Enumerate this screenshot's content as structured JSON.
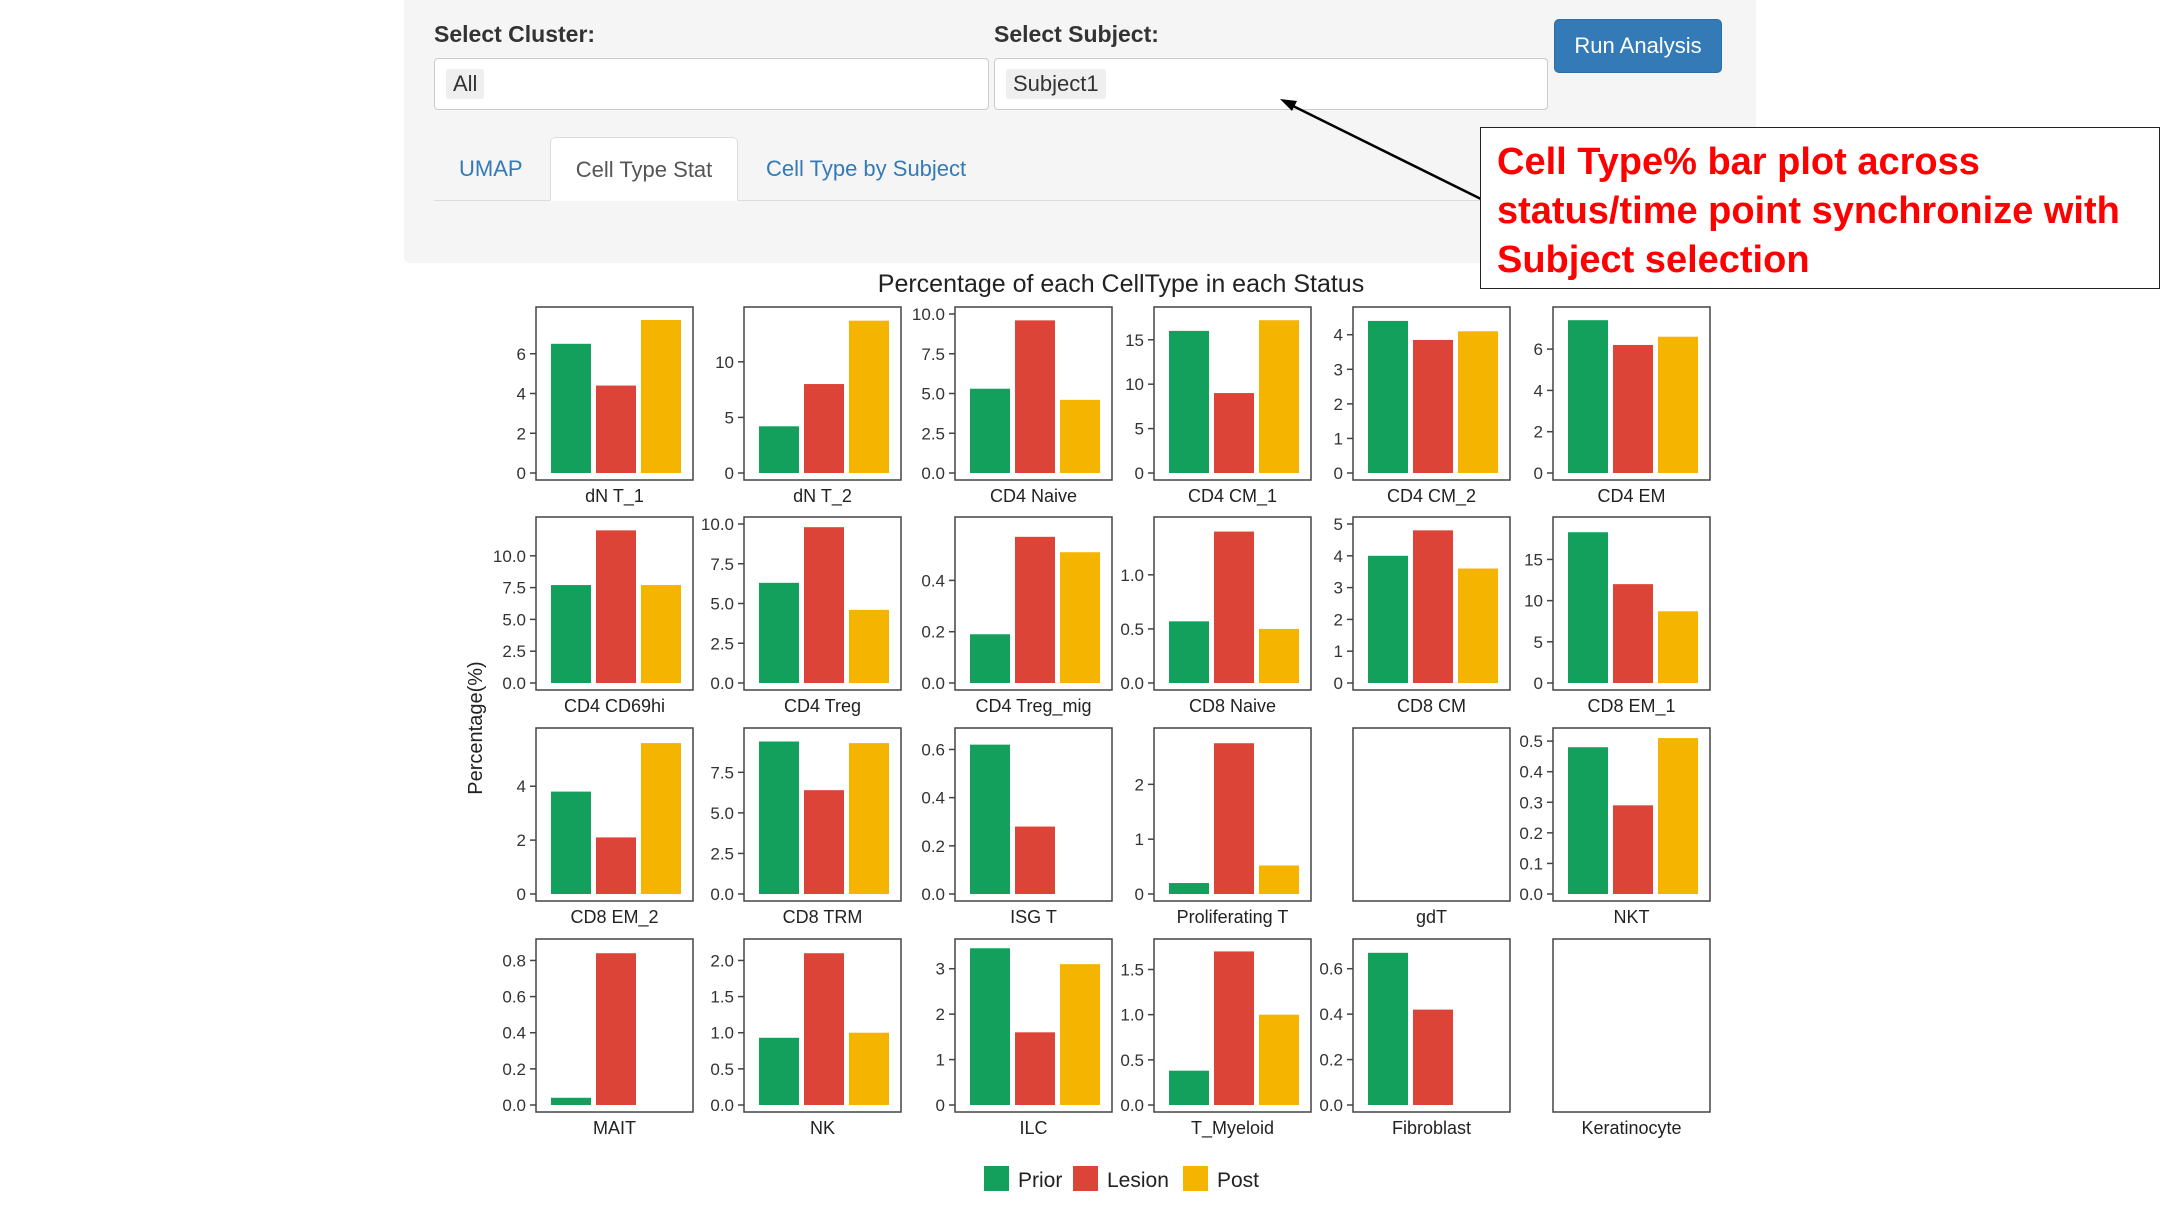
{
  "controls": {
    "cluster_label": "Select Cluster:",
    "cluster_value": "All",
    "subject_label": "Select Subject:",
    "subject_value": "Subject1",
    "run_button": "Run Analysis"
  },
  "tabs": [
    {
      "label": "UMAP",
      "active": false
    },
    {
      "label": "Cell Type Stat",
      "active": true
    },
    {
      "label": "Cell Type by Subject",
      "active": false
    }
  ],
  "annotation": {
    "text": "Cell Type% bar plot across status/time point synchronize with Subject selection",
    "color": "#ff0000"
  },
  "chart_data": {
    "type": "bar",
    "title": "Percentage of each CellType in each Status",
    "ylabel": "Percentage(%)",
    "xlabel": "",
    "categories": [
      "Prior",
      "Lesion",
      "Post"
    ],
    "colors": {
      "Prior": "#12a05c",
      "Lesion": "#dc4437",
      "Post": "#f4b400"
    },
    "legend": [
      "Prior",
      "Lesion",
      "Post"
    ],
    "legend_position": "bottom",
    "panels": [
      {
        "name": "dN T_1",
        "ylim": [
          0,
          8.0
        ],
        "ticks": [
          "0",
          "2",
          "4",
          "6"
        ],
        "tickvals": [
          0,
          2,
          4,
          6
        ],
        "values": [
          6.5,
          4.4,
          7.7
        ]
      },
      {
        "name": "dN T_2",
        "ylim": [
          0,
          14.3
        ],
        "ticks": [
          "0",
          "5",
          "10"
        ],
        "tickvals": [
          0,
          5,
          10
        ],
        "values": [
          4.2,
          8.0,
          13.7
        ]
      },
      {
        "name": "CD4 Naive",
        "ylim": [
          0,
          10.0
        ],
        "ticks": [
          "0.0",
          "2.5",
          "5.0",
          "7.5",
          "10.0"
        ],
        "tickvals": [
          0,
          2.5,
          5,
          7.5,
          10
        ],
        "values": [
          5.3,
          9.6,
          4.6
        ]
      },
      {
        "name": "CD4 CM_1",
        "ylim": [
          0,
          17.9
        ],
        "ticks": [
          "0",
          "5",
          "10",
          "15"
        ],
        "tickvals": [
          0,
          5,
          10,
          15
        ],
        "values": [
          16.0,
          9.0,
          17.2
        ]
      },
      {
        "name": "CD4 CM_2",
        "ylim": [
          0,
          4.6
        ],
        "ticks": [
          "0",
          "1",
          "2",
          "3",
          "4"
        ],
        "tickvals": [
          0,
          1,
          2,
          3,
          4
        ],
        "values": [
          4.4,
          3.85,
          4.1
        ]
      },
      {
        "name": "CD4 EM",
        "ylim": [
          0,
          7.7
        ],
        "ticks": [
          "0",
          "2",
          "4",
          "6"
        ],
        "tickvals": [
          0,
          2,
          4,
          6
        ],
        "values": [
          7.4,
          6.2,
          6.6
        ]
      },
      {
        "name": "CD4 CD69hi",
        "ylim": [
          0,
          12.5
        ],
        "ticks": [
          "0.0",
          "2.5",
          "5.0",
          "7.5",
          "10.0"
        ],
        "tickvals": [
          0,
          2.5,
          5,
          7.5,
          10
        ],
        "values": [
          7.7,
          12.0,
          7.7
        ]
      },
      {
        "name": "CD4 Treg",
        "ylim": [
          0,
          10.0
        ],
        "ticks": [
          "0.0",
          "2.5",
          "5.0",
          "7.5",
          "10.0"
        ],
        "tickvals": [
          0,
          2.5,
          5,
          7.5,
          10
        ],
        "values": [
          6.3,
          9.8,
          4.6
        ]
      },
      {
        "name": "CD4 Treg_mig",
        "ylim": [
          0,
          0.62
        ],
        "ticks": [
          "0.0",
          "0.2",
          "0.4"
        ],
        "tickvals": [
          0,
          0.2,
          0.4
        ],
        "values": [
          0.19,
          0.57,
          0.51
        ]
      },
      {
        "name": "CD8 Naive",
        "ylim": [
          0,
          1.47
        ],
        "ticks": [
          "0.0",
          "0.5",
          "1.0"
        ],
        "tickvals": [
          0,
          0.5,
          1.0
        ],
        "values": [
          0.57,
          1.4,
          0.5
        ]
      },
      {
        "name": "CD8 CM",
        "ylim": [
          0,
          5.0
        ],
        "ticks": [
          "0",
          "1",
          "2",
          "3",
          "4",
          "5"
        ],
        "tickvals": [
          0,
          1,
          2,
          3,
          4,
          5
        ],
        "values": [
          4.0,
          4.8,
          3.6
        ]
      },
      {
        "name": "CD8 EM_1",
        "ylim": [
          0,
          19.3
        ],
        "ticks": [
          "0",
          "5",
          "10",
          "15"
        ],
        "tickvals": [
          0,
          5,
          10,
          15
        ],
        "values": [
          18.3,
          12.0,
          8.7
        ]
      },
      {
        "name": "CD8 EM_2",
        "ylim": [
          0,
          5.9
        ],
        "ticks": [
          "0",
          "2",
          "4"
        ],
        "tickvals": [
          0,
          2,
          4
        ],
        "values": [
          3.8,
          2.1,
          5.6
        ]
      },
      {
        "name": "CD8 TRM",
        "ylim": [
          0,
          9.8
        ],
        "ticks": [
          "0.0",
          "2.5",
          "5.0",
          "7.5"
        ],
        "tickvals": [
          0,
          2.5,
          5,
          7.5
        ],
        "values": [
          9.4,
          6.4,
          9.3
        ]
      },
      {
        "name": "ISG T",
        "ylim": [
          0,
          0.66
        ],
        "ticks": [
          "0.0",
          "0.2",
          "0.4",
          "0.6"
        ],
        "tickvals": [
          0,
          0.2,
          0.4,
          0.6
        ],
        "values": [
          0.62,
          0.28,
          0
        ]
      },
      {
        "name": "Proliferating T",
        "ylim": [
          0,
          2.9
        ],
        "ticks": [
          "0",
          "1",
          "2"
        ],
        "tickvals": [
          0,
          1,
          2
        ],
        "values": [
          0.2,
          2.75,
          0.52
        ]
      },
      {
        "name": "gdT",
        "ylim": [
          0,
          1
        ],
        "ticks": [],
        "tickvals": [],
        "values": [
          0,
          0,
          0
        ]
      },
      {
        "name": "NKT",
        "ylim": [
          0,
          0.52
        ],
        "ticks": [
          "0.0",
          "0.1",
          "0.2",
          "0.3",
          "0.4",
          "0.5"
        ],
        "tickvals": [
          0,
          0.1,
          0.2,
          0.3,
          0.4,
          0.5
        ],
        "values": [
          0.48,
          0.29,
          0.51
        ]
      },
      {
        "name": "MAIT",
        "ylim": [
          0,
          0.88
        ],
        "ticks": [
          "0.0",
          "0.2",
          "0.4",
          "0.6",
          "0.8"
        ],
        "tickvals": [
          0,
          0.2,
          0.4,
          0.6,
          0.8
        ],
        "values": [
          0.04,
          0.84,
          0
        ]
      },
      {
        "name": "NK",
        "ylim": [
          0,
          2.2
        ],
        "ticks": [
          "0.0",
          "0.5",
          "1.0",
          "1.5",
          "2.0"
        ],
        "tickvals": [
          0,
          0.5,
          1.0,
          1.5,
          2.0
        ],
        "values": [
          0.93,
          2.1,
          1.0
        ]
      },
      {
        "name": "ILC",
        "ylim": [
          0,
          3.5
        ],
        "ticks": [
          "0",
          "1",
          "2",
          "3"
        ],
        "tickvals": [
          0,
          1,
          2,
          3
        ],
        "values": [
          3.45,
          1.6,
          3.1
        ]
      },
      {
        "name": "T_Myeloid",
        "ylim": [
          0,
          1.76
        ],
        "ticks": [
          "0.0",
          "0.5",
          "1.0",
          "1.5"
        ],
        "tickvals": [
          0,
          0.5,
          1.0,
          1.5
        ],
        "values": [
          0.38,
          1.7,
          1.0
        ]
      },
      {
        "name": "Fibroblast",
        "ylim": [
          0,
          0.7
        ],
        "ticks": [
          "0.0",
          "0.2",
          "0.4",
          "0.6"
        ],
        "tickvals": [
          0,
          0.2,
          0.4,
          0.6
        ],
        "values": [
          0.67,
          0.42,
          0
        ]
      },
      {
        "name": "Keratinocyte",
        "ylim": [
          0,
          1
        ],
        "ticks": [],
        "tickvals": [],
        "values": [
          0,
          0,
          0
        ]
      }
    ]
  }
}
